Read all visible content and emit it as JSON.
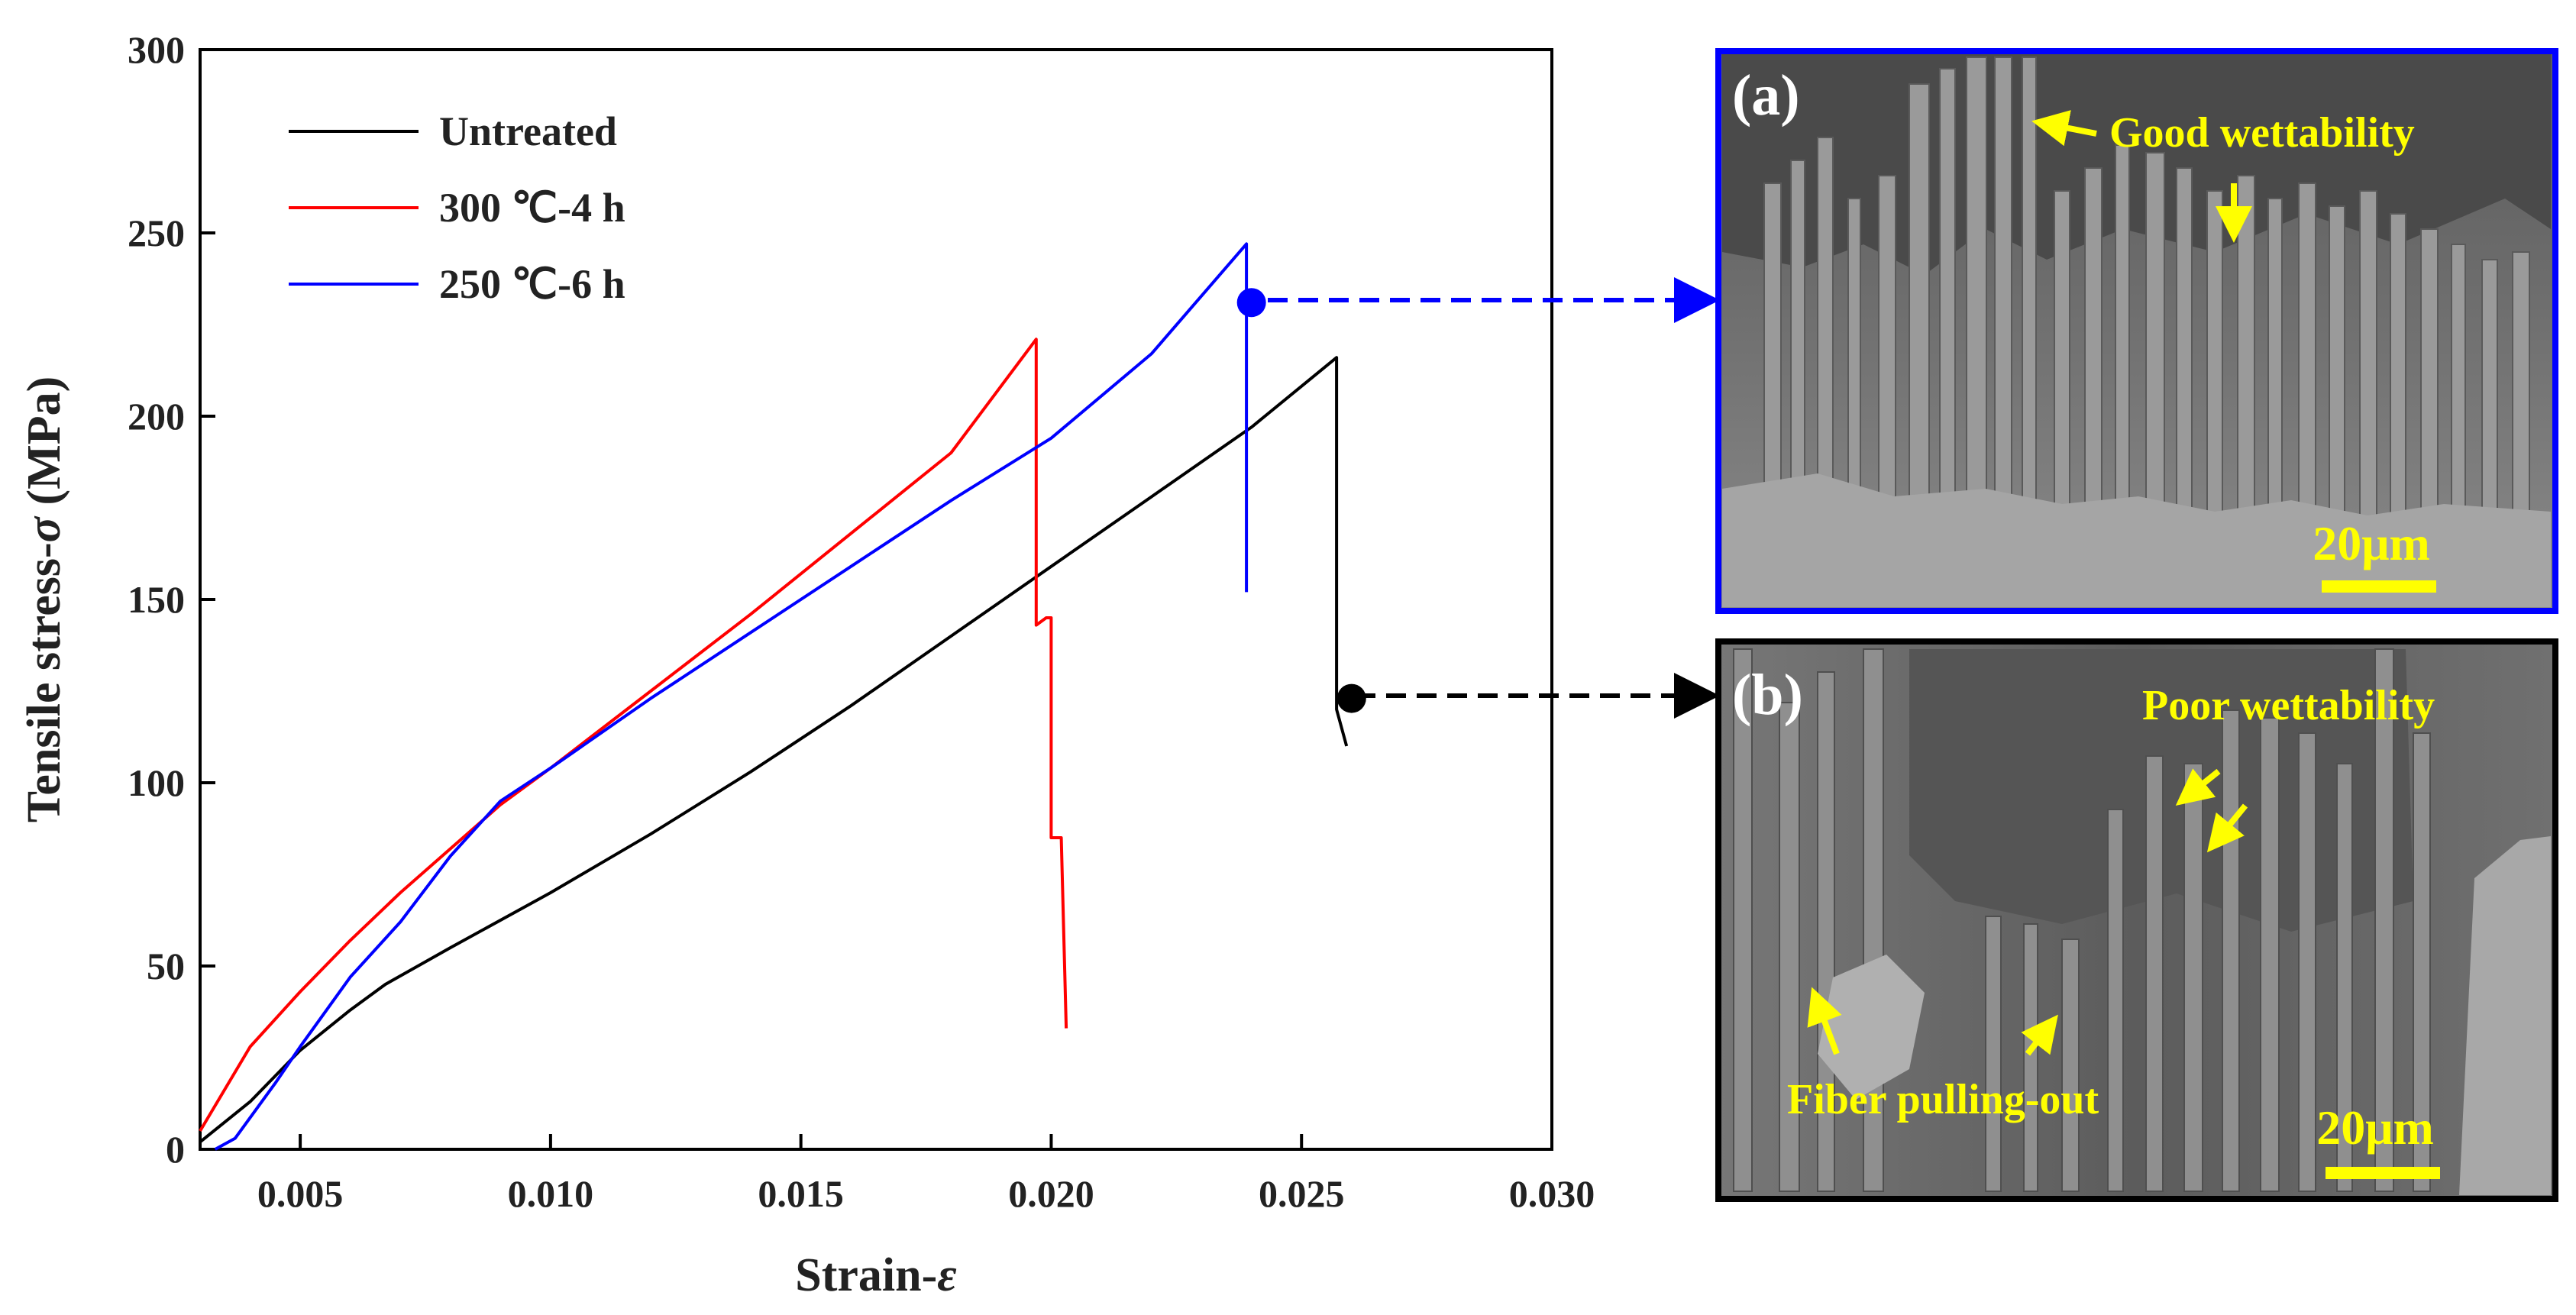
{
  "chart_data": {
    "type": "line",
    "title": "",
    "xlabel": "Strain-",
    "xlabel_symbol": "ε",
    "ylabel": "Tensile stress-",
    "ylabel_symbol": "σ",
    "ylabel_unit": " (MPa)",
    "xlim": [
      0.003,
      0.03
    ],
    "ylim": [
      0,
      300
    ],
    "xticks": [
      0.005,
      0.01,
      0.015,
      0.02,
      0.025,
      0.03
    ],
    "xtick_labels": [
      "0.005",
      "0.010",
      "0.015",
      "0.020",
      "0.025",
      "0.030"
    ],
    "yticks": [
      0,
      50,
      100,
      150,
      200,
      250,
      300
    ],
    "ytick_labels": [
      "0",
      "50",
      "100",
      "150",
      "200",
      "250",
      "300"
    ],
    "grid": false,
    "legend_position": "top-left",
    "series": [
      {
        "name": "Untreated",
        "color": "#000000",
        "x": [
          0.003,
          0.004,
          0.005,
          0.006,
          0.0067,
          0.008,
          0.01,
          0.012,
          0.014,
          0.016,
          0.018,
          0.02,
          0.022,
          0.024,
          0.0257,
          0.0257,
          0.0259
        ],
        "y": [
          2,
          13,
          27,
          38,
          45,
          55,
          70,
          86,
          103,
          121,
          140,
          159,
          178,
          197,
          216,
          120,
          110
        ]
      },
      {
        "name": "300 ℃-4 h",
        "color": "#ff0000",
        "x": [
          0.003,
          0.004,
          0.005,
          0.006,
          0.007,
          0.008,
          0.009,
          0.01,
          0.012,
          0.014,
          0.016,
          0.018,
          0.0197,
          0.0197,
          0.0199,
          0.02,
          0.02,
          0.0202,
          0.0202,
          0.0203
        ],
        "y": [
          5,
          28,
          43,
          57,
          70,
          82,
          94,
          104,
          125,
          146,
          168,
          190,
          221,
          143,
          145,
          145,
          85,
          85,
          85,
          33
        ]
      },
      {
        "name": "250 ℃-6 h",
        "color": "#0000ff",
        "x": [
          0.0033,
          0.0037,
          0.0045,
          0.005,
          0.006,
          0.007,
          0.008,
          0.009,
          0.01,
          0.012,
          0.014,
          0.016,
          0.018,
          0.02,
          0.022,
          0.0239,
          0.0239
        ],
        "y": [
          0,
          3,
          18,
          28,
          47,
          62,
          80,
          95,
          104,
          123,
          141,
          159,
          177,
          194,
          217,
          247,
          152
        ]
      }
    ],
    "markers": [
      {
        "series": "250 ℃-6 h",
        "x": 0.024,
        "y": 231,
        "color": "#0000ff",
        "links_to": "(a)"
      },
      {
        "series": "Untreated",
        "x": 0.026,
        "y": 123,
        "color": "#000000",
        "links_to": "(b)"
      }
    ]
  },
  "panels": [
    {
      "label": "(a)",
      "border_color": "#0000ff",
      "annotation": "Good wettability",
      "scale_bar": "20μm"
    },
    {
      "label": "(b)",
      "border_color": "#000000",
      "annotation_1": "Poor wettability",
      "annotation_2": "Fiber pulling-out",
      "scale_bar": "20μm"
    }
  ]
}
